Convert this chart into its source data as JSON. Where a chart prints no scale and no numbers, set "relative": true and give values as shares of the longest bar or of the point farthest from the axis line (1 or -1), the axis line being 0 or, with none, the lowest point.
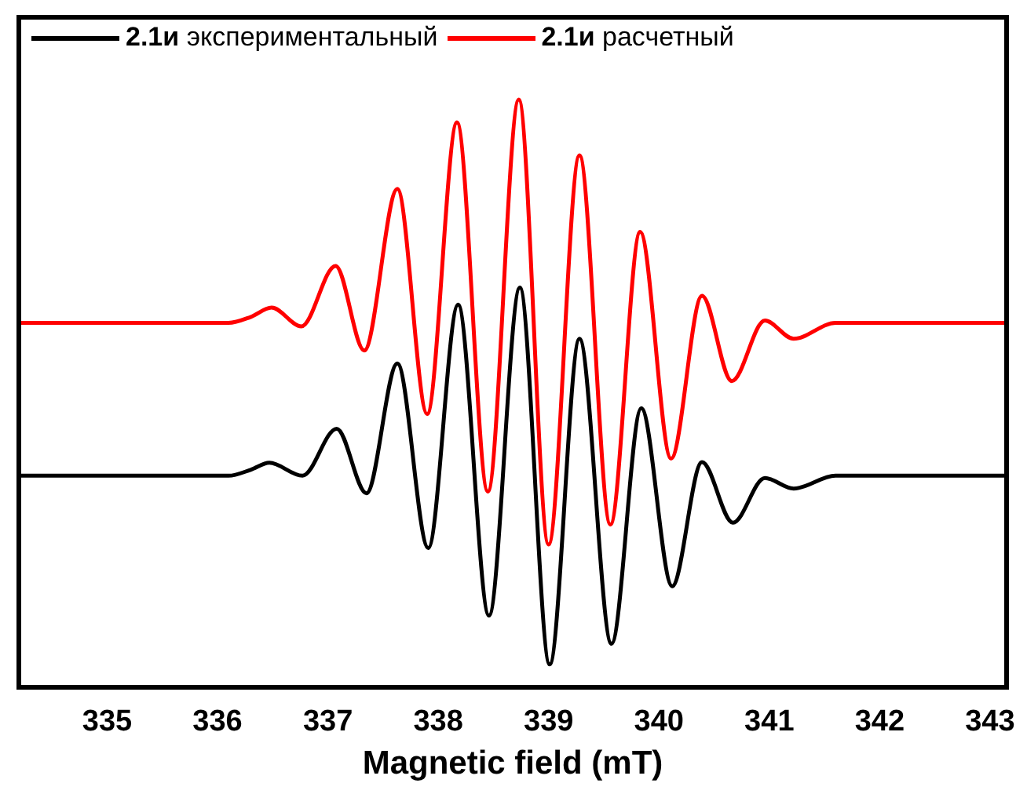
{
  "chart_data": {
    "type": "line",
    "xlabel": "Magnetic field (mT)",
    "relative": true,
    "legend": "top",
    "xlim": [
      334.2,
      343.15
    ],
    "xticks": [
      335,
      336,
      337,
      338,
      339,
      340,
      341,
      342,
      343
    ],
    "series": [
      {
        "name": "2.1и экспериментальный",
        "color": "#000000",
        "x": [
          334.2,
          335.5,
          336.1,
          336.3,
          336.47,
          336.77,
          337.08,
          337.35,
          337.63,
          337.91,
          338.18,
          338.46,
          338.74,
          339.01,
          339.28,
          339.57,
          339.84,
          340.12,
          340.39,
          340.67,
          340.96,
          341.22,
          341.6,
          342.4,
          343.15
        ],
        "values": [
          0.36,
          0.36,
          0.36,
          0.37,
          0.382,
          0.36,
          0.44,
          0.33,
          0.551,
          0.237,
          0.651,
          0.122,
          0.68,
          0.039,
          0.593,
          0.074,
          0.475,
          0.172,
          0.383,
          0.28,
          0.356,
          0.338,
          0.36,
          0.36,
          0.36
        ]
      },
      {
        "name": "2.1и расчетный",
        "color": "#ff0000",
        "x": [
          334.2,
          335.5,
          336.1,
          336.3,
          336.49,
          336.76,
          337.07,
          337.33,
          337.63,
          337.9,
          338.17,
          338.45,
          338.73,
          339.0,
          339.28,
          339.56,
          339.83,
          340.11,
          340.39,
          340.66,
          340.96,
          341.22,
          341.6,
          342.4,
          343.15
        ],
        "values": [
          0.62,
          0.62,
          0.62,
          0.63,
          0.646,
          0.614,
          0.717,
          0.573,
          0.848,
          0.465,
          0.961,
          0.333,
          1,
          0.243,
          0.905,
          0.277,
          0.775,
          0.389,
          0.666,
          0.521,
          0.624,
          0.593,
          0.62,
          0.62,
          0.62
        ]
      }
    ]
  }
}
